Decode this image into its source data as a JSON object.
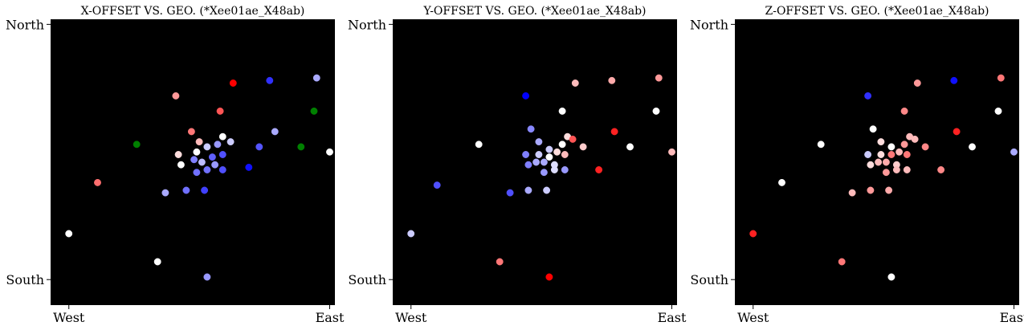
{
  "chart_data": [
    {
      "type": "scatter",
      "title": "X-OFFSET VS. GEO. (*Xee01ae_X48ab)",
      "x_ticks": [
        "West",
        "East"
      ],
      "y_ticks": [
        "North",
        "South"
      ],
      "xlim": [
        -0.07,
        1.02
      ],
      "ylim": [
        -0.1,
        1.02
      ],
      "background": "#000000",
      "points": [
        {
          "x": 0.0,
          "y": 0.18,
          "color": "#ffffff"
        },
        {
          "x": 0.11,
          "y": 0.38,
          "color": "#ff6f6f"
        },
        {
          "x": 0.34,
          "y": 0.07,
          "color": "#ffffff"
        },
        {
          "x": 0.26,
          "y": 0.53,
          "color": "#008000"
        },
        {
          "x": 0.41,
          "y": 0.72,
          "color": "#ff9999"
        },
        {
          "x": 0.63,
          "y": 0.77,
          "color": "#ff0000"
        },
        {
          "x": 0.77,
          "y": 0.78,
          "color": "#3030ff"
        },
        {
          "x": 0.95,
          "y": 0.79,
          "color": "#aaaaff"
        },
        {
          "x": 0.58,
          "y": 0.66,
          "color": "#ff5555"
        },
        {
          "x": 0.94,
          "y": 0.66,
          "color": "#008000"
        },
        {
          "x": 0.47,
          "y": 0.58,
          "color": "#ff7777"
        },
        {
          "x": 0.59,
          "y": 0.56,
          "color": "#ffffff"
        },
        {
          "x": 0.79,
          "y": 0.58,
          "color": "#aaaaff"
        },
        {
          "x": 0.5,
          "y": 0.54,
          "color": "#ffbbbb"
        },
        {
          "x": 0.53,
          "y": 0.52,
          "color": "#ccccff"
        },
        {
          "x": 0.57,
          "y": 0.53,
          "color": "#9999ff"
        },
        {
          "x": 0.49,
          "y": 0.5,
          "color": "#ffffff"
        },
        {
          "x": 0.42,
          "y": 0.49,
          "color": "#ffdddd"
        },
        {
          "x": 0.62,
          "y": 0.54,
          "color": "#ccccff"
        },
        {
          "x": 0.73,
          "y": 0.52,
          "color": "#5555ff"
        },
        {
          "x": 0.89,
          "y": 0.52,
          "color": "#008000"
        },
        {
          "x": 1.0,
          "y": 0.5,
          "color": "#ffffff"
        },
        {
          "x": 0.43,
          "y": 0.45,
          "color": "#ffffff"
        },
        {
          "x": 0.48,
          "y": 0.47,
          "color": "#8080ff"
        },
        {
          "x": 0.51,
          "y": 0.46,
          "color": "#bbbbff"
        },
        {
          "x": 0.55,
          "y": 0.48,
          "color": "#6060ff"
        },
        {
          "x": 0.59,
          "y": 0.49,
          "color": "#5050ff"
        },
        {
          "x": 0.56,
          "y": 0.45,
          "color": "#9999ff"
        },
        {
          "x": 0.49,
          "y": 0.42,
          "color": "#7070ff"
        },
        {
          "x": 0.53,
          "y": 0.43,
          "color": "#7070ff"
        },
        {
          "x": 0.59,
          "y": 0.43,
          "color": "#5050ff"
        },
        {
          "x": 0.69,
          "y": 0.44,
          "color": "#1010ff"
        },
        {
          "x": 0.37,
          "y": 0.34,
          "color": "#aaaaff"
        },
        {
          "x": 0.45,
          "y": 0.35,
          "color": "#7070ff"
        },
        {
          "x": 0.52,
          "y": 0.35,
          "color": "#4040ff"
        },
        {
          "x": 0.53,
          "y": 0.01,
          "color": "#9999ff"
        }
      ]
    },
    {
      "type": "scatter",
      "title": "Y-OFFSET VS. GEO. (*Xee01ae_X48ab)",
      "x_ticks": [
        "West",
        "East"
      ],
      "y_ticks": [
        "North",
        "South"
      ],
      "xlim": [
        -0.07,
        1.02
      ],
      "ylim": [
        -0.1,
        1.02
      ],
      "background": "#000000",
      "points": [
        {
          "x": 0.0,
          "y": 0.18,
          "color": "#ccccff"
        },
        {
          "x": 0.1,
          "y": 0.37,
          "color": "#5050ff"
        },
        {
          "x": 0.34,
          "y": 0.07,
          "color": "#ff7777"
        },
        {
          "x": 0.26,
          "y": 0.53,
          "color": "#ffffff"
        },
        {
          "x": 0.44,
          "y": 0.72,
          "color": "#0000ff"
        },
        {
          "x": 0.63,
          "y": 0.77,
          "color": "#ffbbbb"
        },
        {
          "x": 0.77,
          "y": 0.78,
          "color": "#ffaaaa"
        },
        {
          "x": 0.95,
          "y": 0.79,
          "color": "#ff9999"
        },
        {
          "x": 0.58,
          "y": 0.66,
          "color": "#ffffff"
        },
        {
          "x": 0.94,
          "y": 0.66,
          "color": "#ffffff"
        },
        {
          "x": 0.46,
          "y": 0.59,
          "color": "#8888ff"
        },
        {
          "x": 0.6,
          "y": 0.56,
          "color": "#ffdddd"
        },
        {
          "x": 0.78,
          "y": 0.58,
          "color": "#ff2222"
        },
        {
          "x": 0.49,
          "y": 0.54,
          "color": "#aaaaff"
        },
        {
          "x": 0.53,
          "y": 0.51,
          "color": "#ccccff"
        },
        {
          "x": 0.58,
          "y": 0.53,
          "color": "#ffffff"
        },
        {
          "x": 0.62,
          "y": 0.55,
          "color": "#ff5555"
        },
        {
          "x": 0.66,
          "y": 0.52,
          "color": "#ffcccc"
        },
        {
          "x": 0.84,
          "y": 0.52,
          "color": "#ffffff"
        },
        {
          "x": 1.0,
          "y": 0.5,
          "color": "#ffbbbb"
        },
        {
          "x": 0.44,
          "y": 0.49,
          "color": "#8080ff"
        },
        {
          "x": 0.49,
          "y": 0.49,
          "color": "#ccccff"
        },
        {
          "x": 0.53,
          "y": 0.48,
          "color": "#ffffff"
        },
        {
          "x": 0.56,
          "y": 0.5,
          "color": "#ffdddd"
        },
        {
          "x": 0.59,
          "y": 0.49,
          "color": "#ffbbbb"
        },
        {
          "x": 0.45,
          "y": 0.45,
          "color": "#8080ff"
        },
        {
          "x": 0.48,
          "y": 0.46,
          "color": "#aaaaff"
        },
        {
          "x": 0.51,
          "y": 0.46,
          "color": "#aaaaff"
        },
        {
          "x": 0.55,
          "y": 0.45,
          "color": "#ddddff"
        },
        {
          "x": 0.51,
          "y": 0.42,
          "color": "#9999ff"
        },
        {
          "x": 0.55,
          "y": 0.43,
          "color": "#ddddff"
        },
        {
          "x": 0.59,
          "y": 0.43,
          "color": "#9999ff"
        },
        {
          "x": 0.72,
          "y": 0.43,
          "color": "#ff2222"
        },
        {
          "x": 0.38,
          "y": 0.34,
          "color": "#5050ff"
        },
        {
          "x": 0.45,
          "y": 0.35,
          "color": "#aaaaff"
        },
        {
          "x": 0.52,
          "y": 0.35,
          "color": "#ccccff"
        },
        {
          "x": 0.53,
          "y": 0.01,
          "color": "#ff0000"
        }
      ]
    },
    {
      "type": "scatter",
      "title": "Z-OFFSET VS. GEO. (*Xee01ae_X48ab)",
      "x_ticks": [
        "West",
        "East"
      ],
      "y_ticks": [
        "North",
        "South"
      ],
      "xlim": [
        -0.07,
        1.02
      ],
      "ylim": [
        -0.1,
        1.02
      ],
      "background": "#000000",
      "points": [
        {
          "x": 0.0,
          "y": 0.18,
          "color": "#ff2222"
        },
        {
          "x": 0.11,
          "y": 0.38,
          "color": "#ffffff"
        },
        {
          "x": 0.34,
          "y": 0.07,
          "color": "#ff7777"
        },
        {
          "x": 0.26,
          "y": 0.53,
          "color": "#ffffff"
        },
        {
          "x": 0.44,
          "y": 0.72,
          "color": "#3030ff"
        },
        {
          "x": 0.63,
          "y": 0.77,
          "color": "#ff9999"
        },
        {
          "x": 0.77,
          "y": 0.78,
          "color": "#1010ff"
        },
        {
          "x": 0.95,
          "y": 0.79,
          "color": "#ff7777"
        },
        {
          "x": 0.58,
          "y": 0.66,
          "color": "#ff8888"
        },
        {
          "x": 0.94,
          "y": 0.66,
          "color": "#ffffff"
        },
        {
          "x": 0.46,
          "y": 0.59,
          "color": "#ffffff"
        },
        {
          "x": 0.6,
          "y": 0.56,
          "color": "#ffbbbb"
        },
        {
          "x": 0.78,
          "y": 0.58,
          "color": "#ff2222"
        },
        {
          "x": 0.49,
          "y": 0.54,
          "color": "#ffdddd"
        },
        {
          "x": 0.53,
          "y": 0.52,
          "color": "#ffffff"
        },
        {
          "x": 0.58,
          "y": 0.53,
          "color": "#ff9999"
        },
        {
          "x": 0.62,
          "y": 0.55,
          "color": "#ffbbbb"
        },
        {
          "x": 0.66,
          "y": 0.52,
          "color": "#ff8888"
        },
        {
          "x": 0.84,
          "y": 0.52,
          "color": "#ffffff"
        },
        {
          "x": 1.0,
          "y": 0.5,
          "color": "#aaaaff"
        },
        {
          "x": 0.44,
          "y": 0.49,
          "color": "#ccccff"
        },
        {
          "x": 0.49,
          "y": 0.49,
          "color": "#ffdddd"
        },
        {
          "x": 0.53,
          "y": 0.49,
          "color": "#ff7777"
        },
        {
          "x": 0.56,
          "y": 0.5,
          "color": "#ffbbbb"
        },
        {
          "x": 0.59,
          "y": 0.49,
          "color": "#ff7777"
        },
        {
          "x": 0.45,
          "y": 0.45,
          "color": "#ffdddd"
        },
        {
          "x": 0.48,
          "y": 0.46,
          "color": "#ffbbbb"
        },
        {
          "x": 0.51,
          "y": 0.46,
          "color": "#ffaaaa"
        },
        {
          "x": 0.55,
          "y": 0.45,
          "color": "#ffcccc"
        },
        {
          "x": 0.51,
          "y": 0.42,
          "color": "#ff9999"
        },
        {
          "x": 0.55,
          "y": 0.43,
          "color": "#ffbbbb"
        },
        {
          "x": 0.59,
          "y": 0.43,
          "color": "#ffbbbb"
        },
        {
          "x": 0.72,
          "y": 0.43,
          "color": "#ff8888"
        },
        {
          "x": 0.38,
          "y": 0.34,
          "color": "#ffbbbb"
        },
        {
          "x": 0.45,
          "y": 0.35,
          "color": "#ff9999"
        },
        {
          "x": 0.52,
          "y": 0.35,
          "color": "#ffaaaa"
        },
        {
          "x": 0.53,
          "y": 0.01,
          "color": "#ffffff"
        }
      ]
    }
  ]
}
